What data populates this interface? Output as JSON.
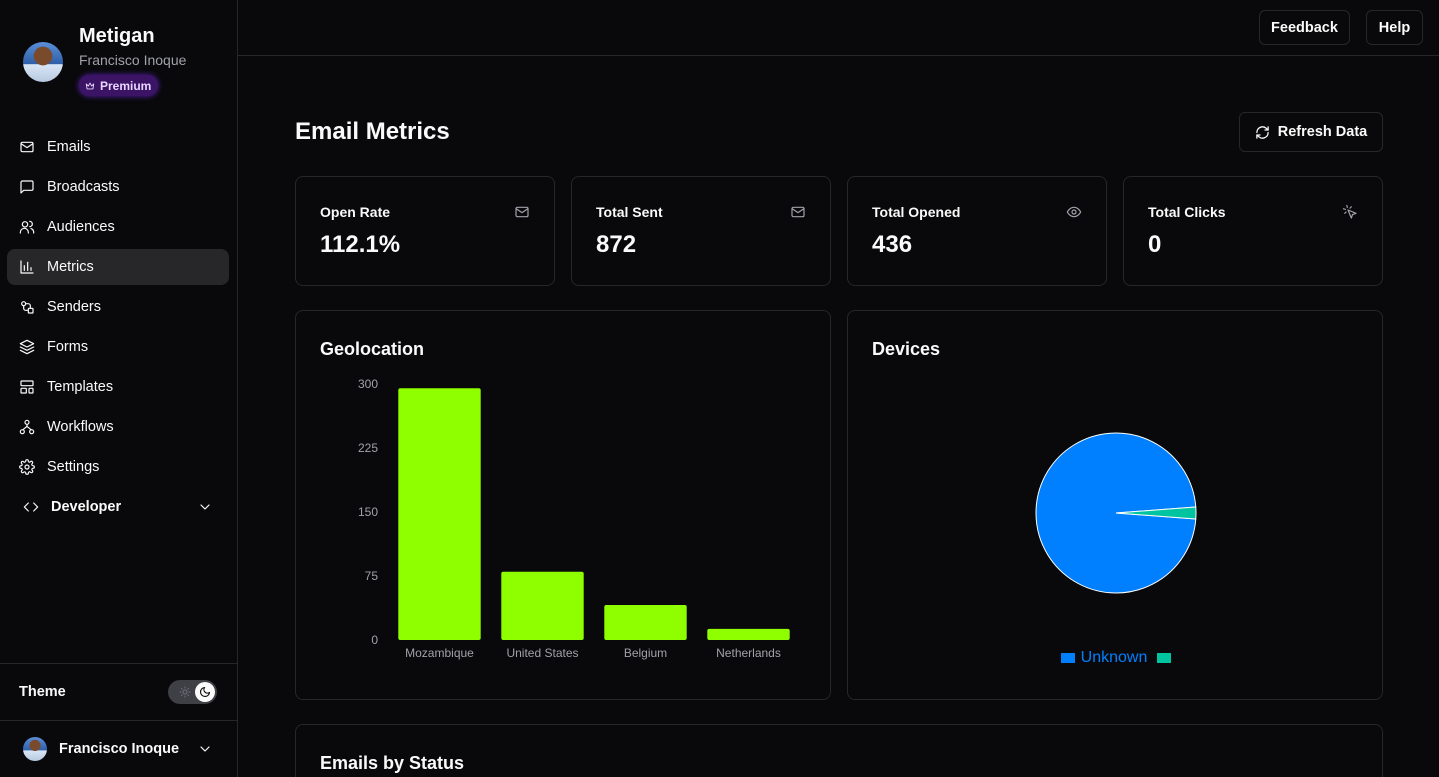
{
  "sidebar": {
    "org_name": "Metigan",
    "user_name": "Francisco Inoque",
    "plan_badge": "Premium",
    "items": [
      {
        "label": "Emails",
        "icon": "mail-icon"
      },
      {
        "label": "Broadcasts",
        "icon": "message-square-icon"
      },
      {
        "label": "Audiences",
        "icon": "users-icon"
      },
      {
        "label": "Metrics",
        "icon": "bar-chart-icon",
        "active": true
      },
      {
        "label": "Senders",
        "icon": "senders-icon"
      },
      {
        "label": "Forms",
        "icon": "layers-icon"
      },
      {
        "label": "Templates",
        "icon": "layout-icon"
      },
      {
        "label": "Workflows",
        "icon": "workflow-icon"
      },
      {
        "label": "Settings",
        "icon": "gear-icon"
      }
    ],
    "developer_label": "Developer",
    "theme_label": "Theme",
    "theme_mode": "dark",
    "footer_user": "Francisco Inoque"
  },
  "topbar": {
    "feedback_label": "Feedback",
    "help_label": "Help"
  },
  "main": {
    "title": "Email Metrics",
    "refresh_label": "Refresh Data",
    "stats": [
      {
        "label": "Open Rate",
        "value": "112.1%",
        "icon": "mail-icon"
      },
      {
        "label": "Total Sent",
        "value": "872",
        "icon": "mail-icon"
      },
      {
        "label": "Total Opened",
        "value": "436",
        "icon": "eye-icon"
      },
      {
        "label": "Total Clicks",
        "value": "0",
        "icon": "pointer-click-icon"
      }
    ],
    "geolocation_title": "Geolocation",
    "devices_title": "Devices",
    "status_title": "Emails by Status"
  },
  "colors": {
    "bar": "#8fff00",
    "pie_unknown": "#0080ff",
    "pie_other": "#00c49f",
    "badge": "#3b1466"
  },
  "chart_data": [
    {
      "type": "bar",
      "title": "Geolocation",
      "categories": [
        "Mozambique",
        "United States",
        "Belgium",
        "Netherlands"
      ],
      "values": [
        295,
        80,
        41,
        13
      ],
      "ylim": [
        0,
        300
      ],
      "yticks": [
        0,
        75,
        150,
        225,
        300
      ],
      "xlabel": "",
      "ylabel": "",
      "grid": false
    },
    {
      "type": "pie",
      "title": "Devices",
      "slices": [
        {
          "name": "Unknown",
          "value": 97.6
        },
        {
          "name": "",
          "value": 2.4
        }
      ],
      "legend": "bottom"
    }
  ]
}
